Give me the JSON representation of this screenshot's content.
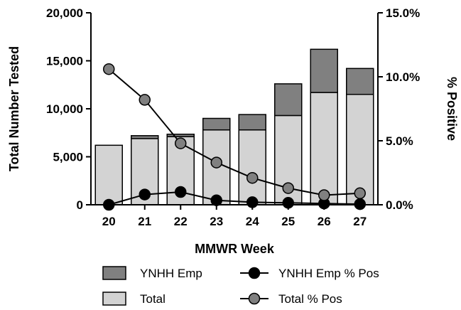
{
  "chart_data": {
    "type": "bar",
    "categories": [
      "20",
      "21",
      "22",
      "23",
      "24",
      "25",
      "26",
      "27"
    ],
    "xlabel": "MMWR Week",
    "ylabel": "Total Number Tested",
    "ylabel_right": "% Positive",
    "ylim": [
      0,
      20000
    ],
    "ylim_right": [
      0,
      15
    ],
    "yticks": [
      "0",
      "5,000",
      "10,000",
      "15,000",
      "20,000"
    ],
    "yticks_right": [
      "0.0%",
      "5.0%",
      "10.0%",
      "15.0%"
    ],
    "stacked": true,
    "series": [
      {
        "name": "Total",
        "kind": "bar",
        "axis": "left",
        "color": "#d3d3d3",
        "values": [
          6200,
          6900,
          7100,
          7800,
          7800,
          9300,
          11700,
          11500
        ]
      },
      {
        "name": "YNHH Emp",
        "kind": "bar",
        "axis": "left",
        "color": "#808080",
        "values": [
          0,
          300,
          250,
          1200,
          1600,
          3300,
          4500,
          2700
        ]
      },
      {
        "name": "YNHH Emp % Pos",
        "kind": "line",
        "axis": "right",
        "color": "#000000",
        "values": [
          0.0,
          0.8,
          1.0,
          0.35,
          0.2,
          0.15,
          0.1,
          0.05
        ]
      },
      {
        "name": "Total % Pos",
        "kind": "line",
        "axis": "right",
        "color": "#808080",
        "values": [
          10.6,
          8.2,
          4.8,
          3.3,
          2.1,
          1.3,
          0.75,
          0.9
        ]
      }
    ],
    "legend": [
      {
        "label": "YNHH Emp",
        "kind": "bar",
        "color": "#808080"
      },
      {
        "label": "YNHH Emp % Pos",
        "kind": "line",
        "color": "#000000"
      },
      {
        "label": "Total",
        "kind": "bar",
        "color": "#d3d3d3"
      },
      {
        "label": "Total % Pos",
        "kind": "line",
        "color": "#808080"
      }
    ],
    "legend_position": "bottom",
    "grid": false
  }
}
